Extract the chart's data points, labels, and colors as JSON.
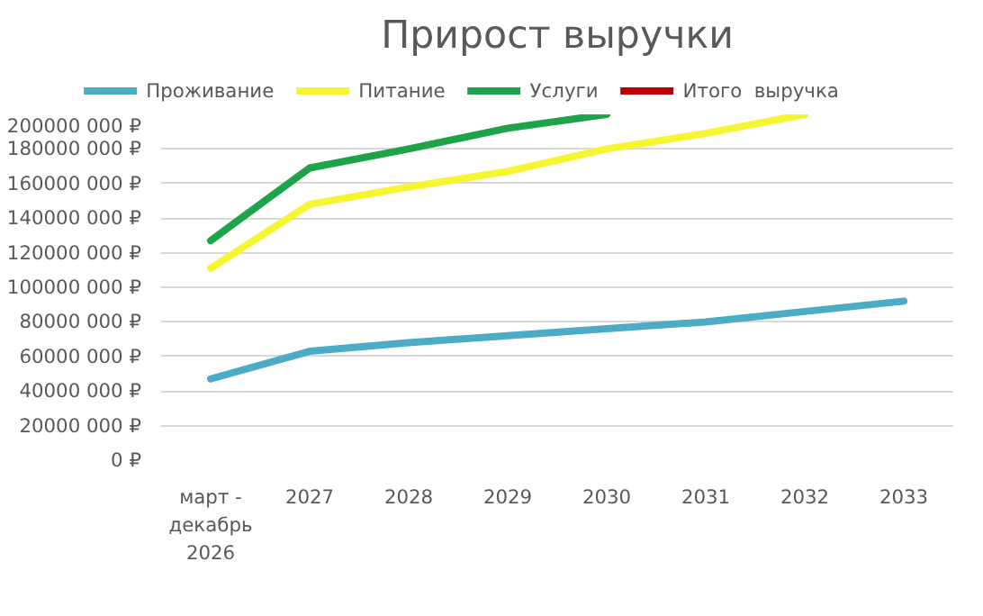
{
  "chart_data": {
    "type": "line",
    "title": "Прирост выручки",
    "categories": [
      "март -\nдекабрь\n2026",
      "2027",
      "2028",
      "2029",
      "2030",
      "2031",
      "2032",
      "2033"
    ],
    "series": [
      {
        "name": "Проживание",
        "color": "#4bacc6",
        "values": [
          47000000,
          63000000,
          68000000,
          72000000,
          76000000,
          80000000,
          86000000,
          92000000
        ]
      },
      {
        "name": "Питание",
        "color": "#f5f531",
        "values": [
          111000000,
          148000000,
          158000000,
          167000000,
          180000000,
          189000000,
          200000000,
          null
        ]
      },
      {
        "name": "Услуги",
        "color": "#1fa34a",
        "values": [
          127000000,
          169000000,
          180000000,
          192000000,
          200000000,
          null,
          null,
          null
        ]
      },
      {
        "name": "Итого  выручка",
        "color": "#c00000",
        "values": [
          null,
          null,
          null,
          null,
          null,
          null,
          null,
          null
        ]
      }
    ],
    "ylim": [
      0,
      200000000
    ],
    "yticks": [
      {
        "value": 0,
        "label": "0 ₽"
      },
      {
        "value": 20000000,
        "label": "20000 000 ₽"
      },
      {
        "value": 40000000,
        "label": "40000 000 ₽"
      },
      {
        "value": 60000000,
        "label": "60000 000 ₽"
      },
      {
        "value": 80000000,
        "label": "80000 000 ₽"
      },
      {
        "value": 100000000,
        "label": "100000 000 ₽"
      },
      {
        "value": 120000000,
        "label": "120000 000 ₽"
      },
      {
        "value": 140000000,
        "label": "140000 000 ₽"
      },
      {
        "value": 160000000,
        "label": "160000 000 ₽"
      },
      {
        "value": 180000000,
        "label": "180000 000 ₽"
      },
      {
        "value": 200000000,
        "label": "200000 000 ₽"
      }
    ],
    "grid": "y",
    "legend": "top",
    "line_style": "solid",
    "marker": "none"
  }
}
